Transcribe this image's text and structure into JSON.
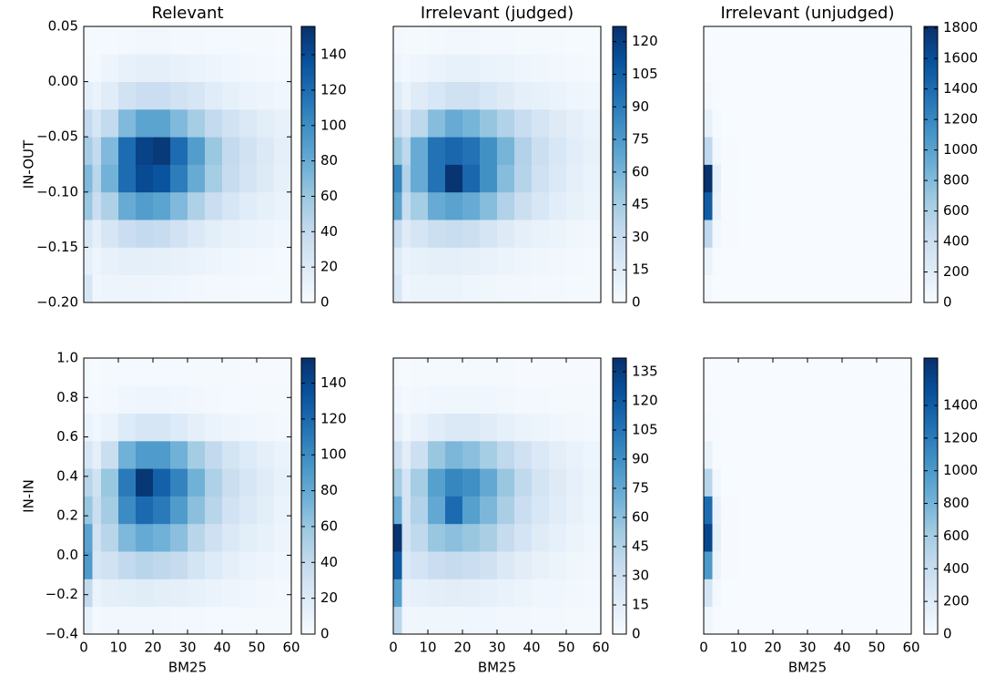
{
  "chart_data": [
    {
      "type": "heatmap",
      "title": "Relevant",
      "ylabel": "IN-OUT",
      "xlim": [
        0,
        60
      ],
      "ylim": [
        -0.2,
        0.05
      ],
      "yticks": [
        {
          "value": -0.2,
          "label": "−0.20"
        },
        {
          "value": -0.15,
          "label": "−0.15"
        },
        {
          "value": -0.1,
          "label": "−0.10"
        },
        {
          "value": -0.05,
          "label": "−0.05"
        },
        {
          "value": 0,
          "label": "0.00"
        },
        0.05
      ],
      "xbins": [
        0,
        2.5,
        5,
        10,
        15,
        20,
        25,
        30,
        35,
        40,
        45,
        50,
        55,
        60
      ],
      "ybins": [
        -0.2,
        -0.175,
        -0.15,
        -0.125,
        -0.1,
        -0.075,
        -0.05,
        -0.025,
        0,
        0.025,
        0.05
      ],
      "values": [
        [
          25,
          6,
          8,
          8,
          8,
          7,
          6,
          5,
          4,
          4,
          3,
          3,
          2
        ],
        [
          15,
          8,
          12,
          15,
          15,
          14,
          12,
          10,
          8,
          6,
          5,
          4,
          3
        ],
        [
          25,
          15,
          25,
          35,
          40,
          38,
          30,
          22,
          16,
          12,
          10,
          8,
          6
        ],
        [
          60,
          35,
          50,
          80,
          90,
          85,
          70,
          50,
          35,
          25,
          18,
          14,
          10
        ],
        [
          70,
          45,
          75,
          120,
          140,
          135,
          110,
          80,
          55,
          38,
          28,
          20,
          14
        ],
        [
          55,
          40,
          70,
          120,
          145,
          150,
          120,
          90,
          60,
          40,
          30,
          22,
          15
        ],
        [
          40,
          25,
          40,
          70,
          85,
          85,
          70,
          55,
          40,
          30,
          22,
          16,
          12
        ],
        [
          15,
          10,
          18,
          30,
          35,
          35,
          30,
          25,
          18,
          14,
          10,
          8,
          6
        ],
        [
          5,
          4,
          8,
          12,
          15,
          15,
          12,
          10,
          8,
          6,
          5,
          4,
          3
        ],
        [
          2,
          2,
          3,
          4,
          5,
          5,
          4,
          4,
          3,
          3,
          2,
          2,
          1
        ]
      ],
      "clim": [
        0,
        156
      ],
      "cticks": [
        0,
        20,
        40,
        60,
        80,
        100,
        120,
        140
      ],
      "colormap": [
        "#f7fbff",
        "#deebf7",
        "#c6dbef",
        "#9ecae1",
        "#6baed6",
        "#4292c6",
        "#2171b5",
        "#08519c",
        "#08306b"
      ]
    },
    {
      "type": "heatmap",
      "title": "Irrelevant (judged)",
      "xlim": [
        0,
        60
      ],
      "ylim": [
        -0.2,
        0.05
      ],
      "xbins": [
        0,
        2.5,
        5,
        10,
        15,
        20,
        25,
        30,
        35,
        40,
        45,
        50,
        55,
        60
      ],
      "ybins": [
        -0.2,
        -0.175,
        -0.15,
        -0.125,
        -0.1,
        -0.075,
        -0.05,
        -0.025,
        0,
        0.025,
        0.05
      ],
      "values": [
        [
          20,
          6,
          7,
          7,
          7,
          6,
          5,
          4,
          4,
          3,
          3,
          2,
          2
        ],
        [
          15,
          8,
          10,
          12,
          12,
          11,
          9,
          7,
          6,
          5,
          4,
          3,
          2
        ],
        [
          30,
          15,
          22,
          28,
          30,
          28,
          22,
          16,
          12,
          9,
          7,
          5,
          4
        ],
        [
          70,
          30,
          45,
          65,
          70,
          65,
          55,
          40,
          28,
          20,
          14,
          10,
          7
        ],
        [
          85,
          40,
          65,
          95,
          125,
          100,
          80,
          55,
          38,
          26,
          18,
          12,
          8
        ],
        [
          50,
          35,
          65,
          95,
          100,
          95,
          80,
          60,
          40,
          28,
          20,
          14,
          10
        ],
        [
          30,
          20,
          35,
          55,
          65,
          60,
          50,
          40,
          30,
          22,
          16,
          12,
          8
        ],
        [
          15,
          8,
          15,
          20,
          25,
          25,
          20,
          16,
          12,
          10,
          8,
          6,
          5
        ],
        [
          6,
          4,
          6,
          8,
          10,
          10,
          8,
          7,
          6,
          5,
          4,
          3,
          2
        ],
        [
          3,
          2,
          2,
          3,
          4,
          4,
          3,
          3,
          2,
          2,
          2,
          1,
          1
        ]
      ],
      "clim": [
        0,
        127
      ],
      "cticks": [
        0,
        15,
        30,
        45,
        60,
        75,
        90,
        105,
        120
      ],
      "colormap": [
        "#f7fbff",
        "#deebf7",
        "#c6dbef",
        "#9ecae1",
        "#6baed6",
        "#4292c6",
        "#2171b5",
        "#08519c",
        "#08306b"
      ]
    },
    {
      "type": "heatmap",
      "title": "Irrelevant (unjudged)",
      "xlim": [
        0,
        60
      ],
      "ylim": [
        -0.2,
        0.05
      ],
      "xbins": [
        0,
        2.5,
        5,
        10,
        15,
        20,
        25,
        30,
        35,
        40,
        45,
        50,
        55,
        60
      ],
      "ybins": [
        -0.2,
        -0.175,
        -0.15,
        -0.125,
        -0.1,
        -0.075,
        -0.05,
        -0.025,
        0,
        0.025,
        0.05
      ],
      "values": [
        [
          40,
          5,
          2,
          1,
          0,
          0,
          0,
          0,
          0,
          0,
          0,
          0,
          0
        ],
        [
          120,
          15,
          3,
          1,
          1,
          0,
          0,
          0,
          0,
          0,
          0,
          0,
          0
        ],
        [
          500,
          50,
          8,
          3,
          2,
          1,
          0,
          0,
          0,
          0,
          0,
          0,
          0
        ],
        [
          1500,
          120,
          12,
          5,
          3,
          2,
          1,
          1,
          0,
          0,
          0,
          0,
          0
        ],
        [
          1800,
          150,
          15,
          5,
          3,
          2,
          1,
          1,
          0,
          0,
          0,
          0,
          0
        ],
        [
          500,
          60,
          10,
          4,
          2,
          1,
          1,
          0,
          0,
          0,
          0,
          0,
          0
        ],
        [
          150,
          30,
          5,
          2,
          1,
          0,
          0,
          0,
          0,
          0,
          0,
          0,
          0
        ],
        [
          40,
          10,
          2,
          1,
          0,
          0,
          0,
          0,
          0,
          0,
          0,
          0,
          0
        ],
        [
          10,
          3,
          1,
          0,
          0,
          0,
          0,
          0,
          0,
          0,
          0,
          0,
          0
        ],
        [
          2,
          1,
          0,
          0,
          0,
          0,
          0,
          0,
          0,
          0,
          0,
          0,
          0
        ]
      ],
      "clim": [
        0,
        1810
      ],
      "cticks": [
        0,
        200,
        400,
        600,
        800,
        1000,
        1200,
        1400,
        1600,
        1800
      ],
      "colormap": [
        "#f7fbff",
        "#deebf7",
        "#c6dbef",
        "#9ecae1",
        "#6baed6",
        "#4292c6",
        "#2171b5",
        "#08519c",
        "#08306b"
      ]
    },
    {
      "type": "heatmap",
      "ylabel": "IN-IN",
      "xlabel": "BM25",
      "xlim": [
        0,
        60
      ],
      "ylim": [
        -0.4,
        1.0
      ],
      "xticks": [
        0,
        10,
        20,
        30,
        40,
        50,
        60
      ],
      "yticks": [
        {
          "value": -0.4,
          "label": "−0.4"
        },
        {
          "value": -0.2,
          "label": "−0.2"
        },
        {
          "value": 0,
          "label": "0.0"
        },
        0.2,
        0.4,
        0.6,
        0.8,
        {
          "value": 1.0,
          "label": "1.0"
        }
      ],
      "xbins": [
        0,
        2.5,
        5,
        10,
        15,
        20,
        25,
        30,
        35,
        40,
        45,
        50,
        55,
        60
      ],
      "ybins": [
        -0.4,
        -0.26,
        -0.12,
        0.02,
        0.16,
        0.3,
        0.44,
        0.58,
        0.72,
        0.86,
        1.0
      ],
      "values": [
        [
          12,
          4,
          5,
          5,
          5,
          5,
          4,
          4,
          3,
          3,
          2,
          2,
          2
        ],
        [
          40,
          10,
          14,
          16,
          18,
          16,
          14,
          12,
          10,
          8,
          6,
          5,
          4
        ],
        [
          90,
          25,
          30,
          40,
          45,
          42,
          38,
          28,
          20,
          15,
          10,
          8,
          6
        ],
        [
          85,
          30,
          45,
          70,
          80,
          75,
          65,
          45,
          32,
          22,
          16,
          12,
          8
        ],
        [
          60,
          35,
          55,
          100,
          120,
          110,
          90,
          65,
          45,
          30,
          22,
          16,
          10
        ],
        [
          45,
          30,
          60,
          110,
          150,
          125,
          105,
          75,
          50,
          35,
          25,
          18,
          12
        ],
        [
          25,
          15,
          35,
          75,
          90,
          90,
          75,
          55,
          40,
          28,
          20,
          14,
          10
        ],
        [
          10,
          6,
          10,
          20,
          25,
          25,
          20,
          15,
          10,
          8,
          6,
          5,
          4
        ],
        [
          4,
          3,
          4,
          6,
          7,
          7,
          6,
          5,
          4,
          3,
          3,
          2,
          2
        ],
        [
          2,
          1,
          2,
          3,
          3,
          3,
          3,
          2,
          2,
          2,
          1,
          1,
          1
        ]
      ],
      "clim": [
        0,
        154
      ],
      "cticks": [
        0,
        20,
        40,
        60,
        80,
        100,
        120,
        140
      ],
      "colormap": [
        "#f7fbff",
        "#deebf7",
        "#c6dbef",
        "#9ecae1",
        "#6baed6",
        "#4292c6",
        "#2171b5",
        "#08519c",
        "#08306b"
      ]
    },
    {
      "type": "heatmap",
      "xlabel": "BM25",
      "xlim": [
        0,
        60
      ],
      "ylim": [
        -0.4,
        1.0
      ],
      "xticks": [
        0,
        10,
        20,
        30,
        40,
        50,
        60
      ],
      "xbins": [
        0,
        2.5,
        5,
        10,
        15,
        20,
        25,
        30,
        35,
        40,
        45,
        50,
        55,
        60
      ],
      "ybins": [
        -0.4,
        -0.26,
        -0.12,
        0.02,
        0.16,
        0.3,
        0.44,
        0.58,
        0.72,
        0.86,
        1.0
      ],
      "values": [
        [
          40,
          5,
          6,
          6,
          6,
          5,
          5,
          4,
          4,
          3,
          3,
          2,
          2
        ],
        [
          80,
          10,
          12,
          14,
          15,
          14,
          12,
          10,
          8,
          6,
          5,
          4,
          3
        ],
        [
          120,
          20,
          25,
          32,
          35,
          32,
          28,
          20,
          15,
          11,
          8,
          6,
          4
        ],
        [
          140,
          25,
          38,
          55,
          60,
          55,
          48,
          35,
          25,
          17,
          12,
          8,
          6
        ],
        [
          70,
          25,
          45,
          75,
          110,
          80,
          65,
          48,
          32,
          22,
          16,
          11,
          7
        ],
        [
          50,
          25,
          50,
          80,
          95,
          90,
          75,
          55,
          38,
          26,
          18,
          12,
          8
        ],
        [
          30,
          15,
          30,
          55,
          65,
          60,
          50,
          38,
          28,
          20,
          14,
          10,
          7
        ],
        [
          12,
          6,
          10,
          16,
          20,
          20,
          16,
          12,
          9,
          7,
          5,
          4,
          3
        ],
        [
          5,
          3,
          4,
          5,
          6,
          6,
          5,
          4,
          3,
          3,
          2,
          2,
          2
        ],
        [
          2,
          1,
          2,
          2,
          2,
          2,
          2,
          2,
          1,
          1,
          1,
          1,
          1
        ]
      ],
      "clim": [
        0,
        142
      ],
      "cticks": [
        0,
        15,
        30,
        45,
        60,
        75,
        90,
        105,
        120,
        135
      ],
      "colormap": [
        "#f7fbff",
        "#deebf7",
        "#c6dbef",
        "#9ecae1",
        "#6baed6",
        "#4292c6",
        "#2171b5",
        "#08519c",
        "#08306b"
      ]
    },
    {
      "type": "heatmap",
      "xlabel": "BM25",
      "xlim": [
        0,
        60
      ],
      "ylim": [
        -0.4,
        1.0
      ],
      "xticks": [
        0,
        10,
        20,
        30,
        40,
        50,
        60
      ],
      "xbins": [
        0,
        2.5,
        5,
        10,
        15,
        20,
        25,
        30,
        35,
        40,
        45,
        50,
        55,
        60
      ],
      "ybins": [
        -0.4,
        -0.26,
        -0.12,
        0.02,
        0.16,
        0.3,
        0.44,
        0.58,
        0.72,
        0.86,
        1.0
      ],
      "values": [
        [
          60,
          10,
          2,
          1,
          0,
          0,
          0,
          0,
          0,
          0,
          0,
          0,
          0
        ],
        [
          300,
          40,
          5,
          2,
          1,
          0,
          0,
          0,
          0,
          0,
          0,
          0,
          0
        ],
        [
          1000,
          100,
          10,
          3,
          2,
          1,
          0,
          0,
          0,
          0,
          0,
          0,
          0
        ],
        [
          1550,
          150,
          12,
          4,
          2,
          1,
          1,
          0,
          0,
          0,
          0,
          0,
          0
        ],
        [
          1300,
          120,
          10,
          4,
          2,
          1,
          1,
          0,
          0,
          0,
          0,
          0,
          0
        ],
        [
          500,
          50,
          6,
          2,
          1,
          1,
          0,
          0,
          0,
          0,
          0,
          0,
          0
        ],
        [
          120,
          15,
          3,
          1,
          0,
          0,
          0,
          0,
          0,
          0,
          0,
          0,
          0
        ],
        [
          30,
          10,
          2,
          1,
          0,
          0,
          0,
          0,
          0,
          0,
          0,
          0,
          0
        ],
        [
          8,
          3,
          1,
          0,
          0,
          0,
          0,
          0,
          0,
          0,
          0,
          0,
          0
        ],
        [
          2,
          1,
          0,
          0,
          0,
          0,
          0,
          0,
          0,
          0,
          0,
          0,
          0
        ]
      ],
      "clim": [
        0,
        1690
      ],
      "cticks": [
        0,
        200,
        400,
        600,
        800,
        1000,
        1200,
        1400
      ],
      "colormap": [
        "#f7fbff",
        "#deebf7",
        "#c6dbef",
        "#9ecae1",
        "#6baed6",
        "#4292c6",
        "#2171b5",
        "#08519c",
        "#08306b"
      ]
    }
  ]
}
